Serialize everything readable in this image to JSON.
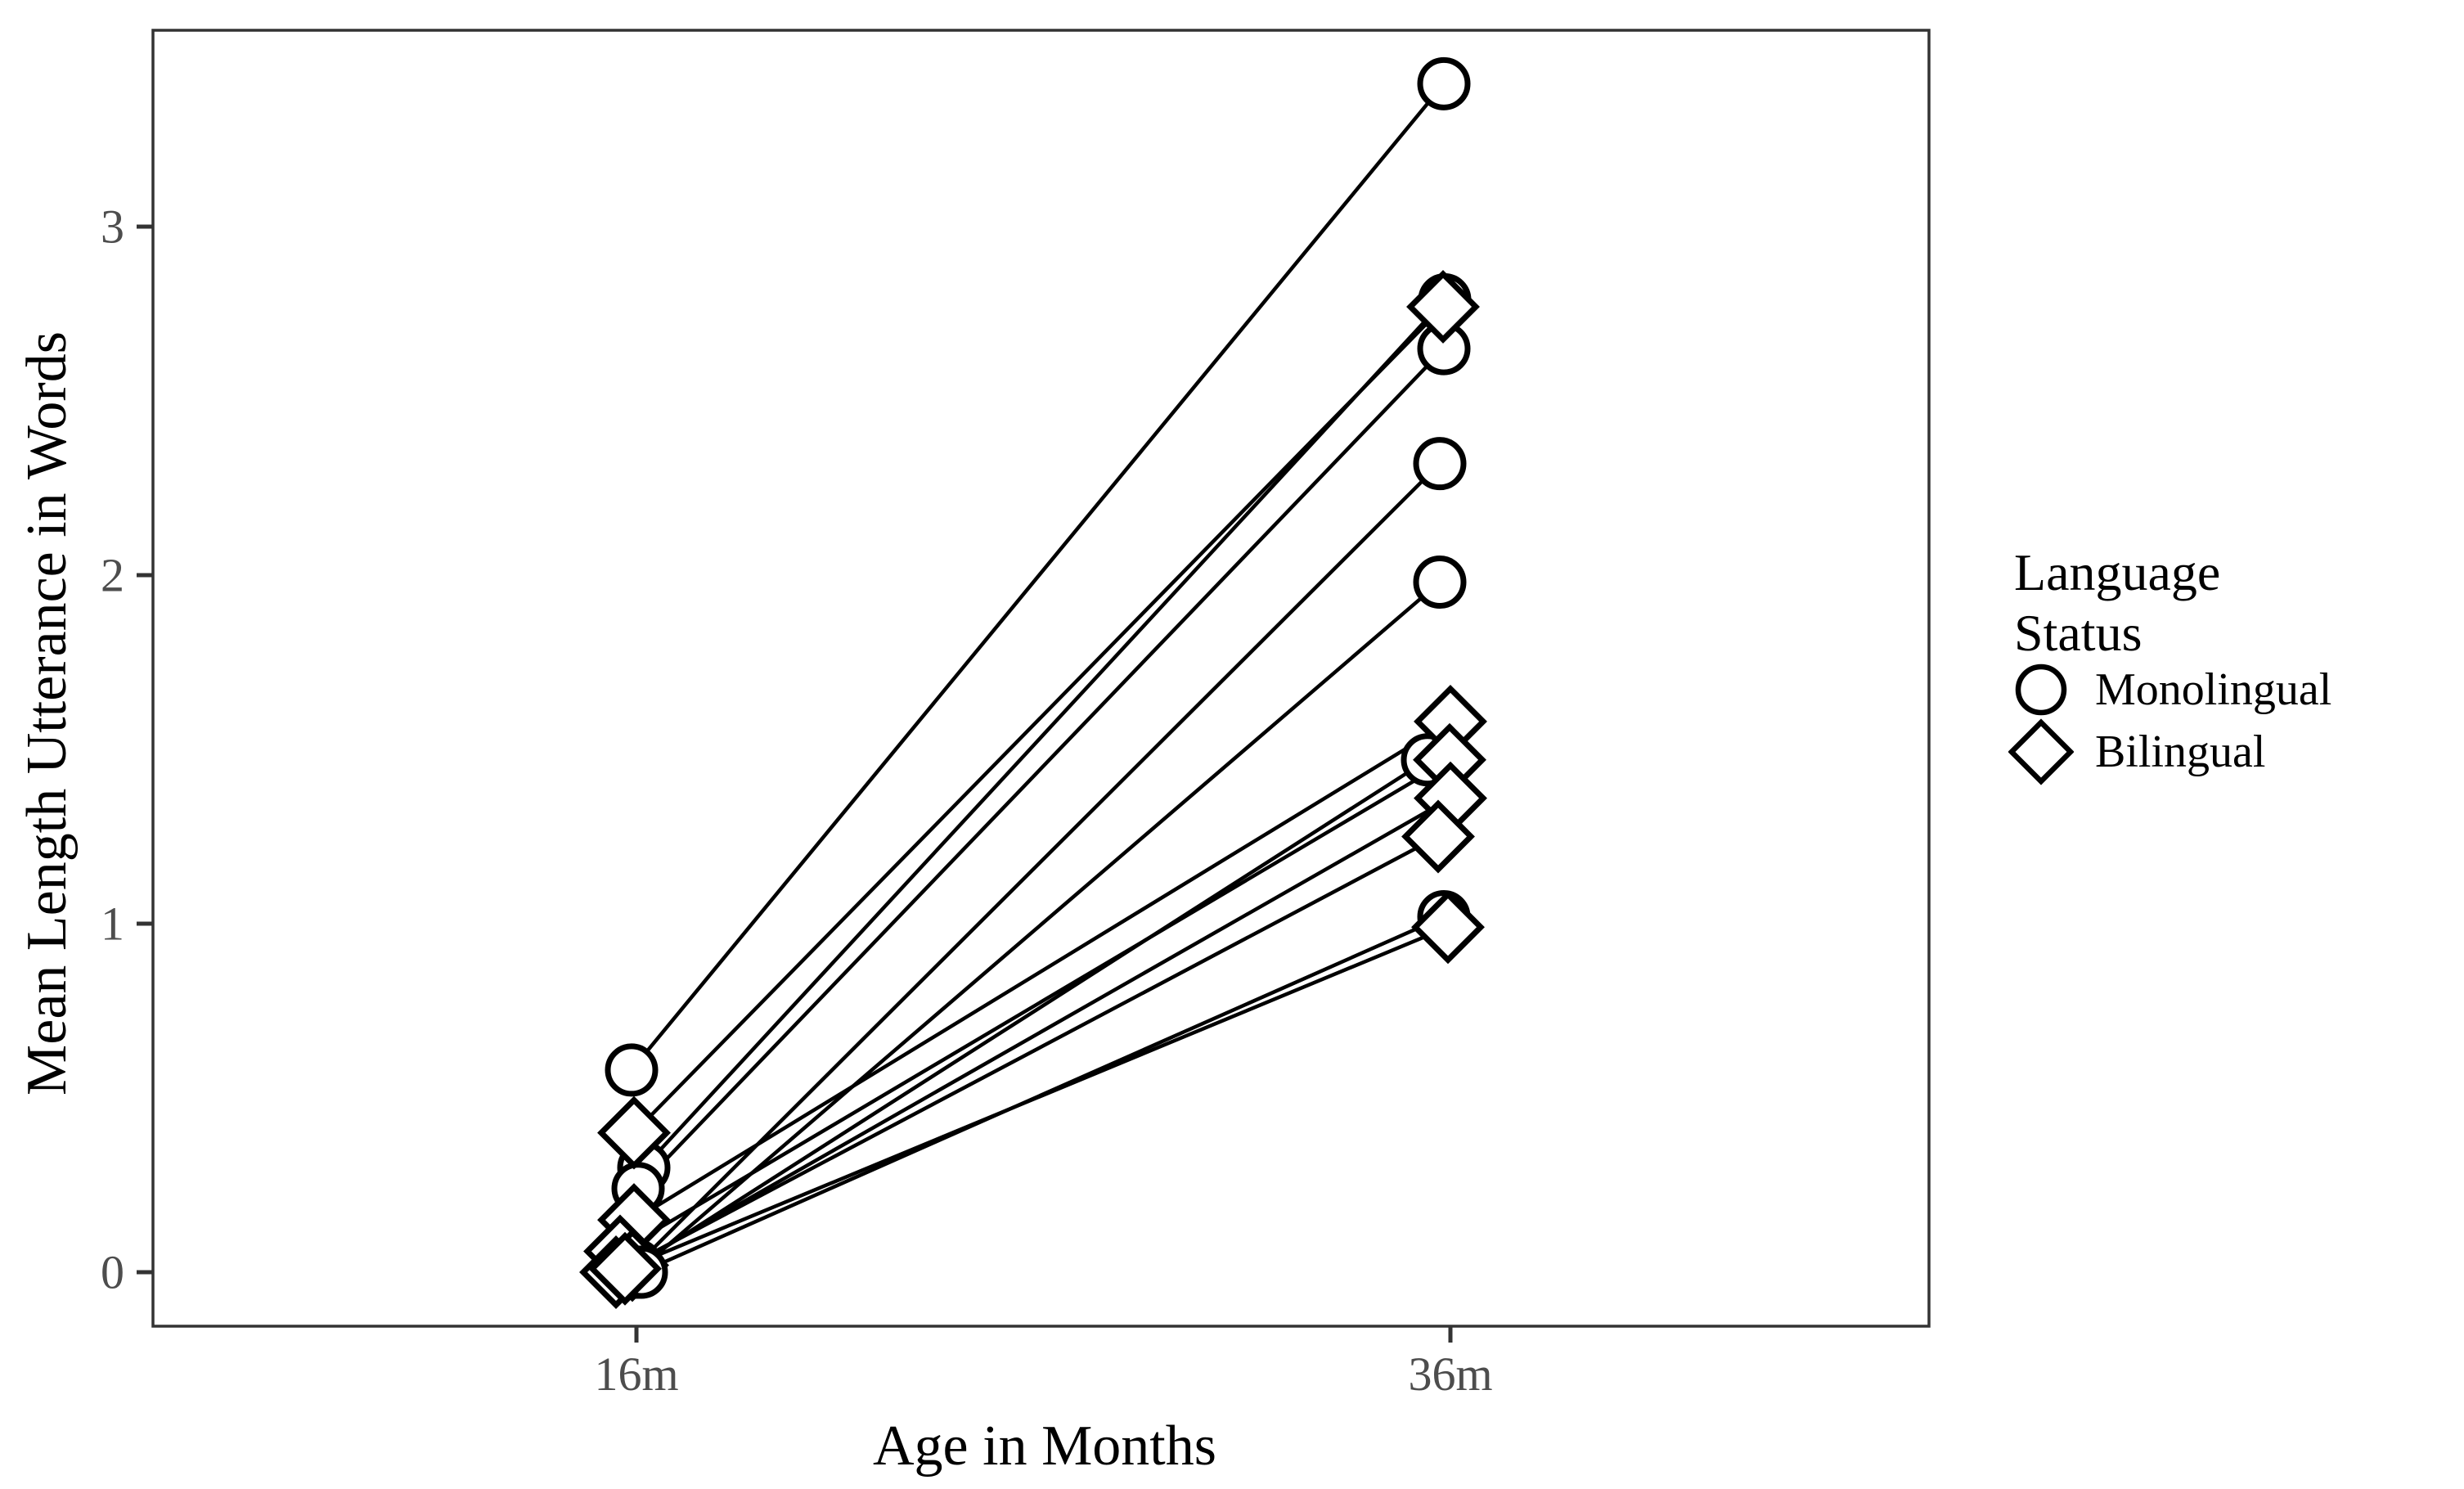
{
  "figure": {
    "x_axis_title": "Age in Months",
    "y_axis_title": "Mean Length Utterance in Words",
    "legend": {
      "title": "Language Status",
      "entries": [
        {
          "label": "Monolingual",
          "marker": "circle"
        },
        {
          "label": "Bilingual",
          "marker": "diamond"
        }
      ]
    }
  },
  "chart_data": {
    "type": "line",
    "title": "",
    "xlabel": "Age in Months",
    "ylabel": "Mean Length Utterance in Words",
    "x_categories": [
      "16m",
      "36m"
    ],
    "yticks": [
      "0",
      "1",
      "2",
      "3"
    ],
    "ylim": [
      -0.16,
      3.56
    ],
    "grid": false,
    "legend_position": "right",
    "legend_title": "Language Status",
    "series_legend": [
      {
        "name": "Monolingual",
        "marker": "circle"
      },
      {
        "name": "Bilingual",
        "marker": "diamond"
      }
    ],
    "subjects": [
      {
        "group": "Monolingual",
        "marker": "circle",
        "mlu_16m": 0.3,
        "mlu_36m": 2.79
      },
      {
        "group": "Monolingual",
        "marker": "circle",
        "mlu_16m": 0.24,
        "mlu_36m": 2.65
      },
      {
        "group": "Monolingual",
        "marker": "circle",
        "mlu_16m": 0.02,
        "mlu_36m": 2.32
      },
      {
        "group": "Monolingual",
        "marker": "circle",
        "mlu_16m": 0.01,
        "mlu_36m": 1.47
      },
      {
        "group": "Bilingual",
        "marker": "diamond",
        "mlu_16m": 0.4,
        "mlu_36m": 2.77
      },
      {
        "group": "Bilingual",
        "marker": "diamond",
        "mlu_16m": 0.15,
        "mlu_36m": 1.58
      },
      {
        "group": "Bilingual",
        "marker": "diamond",
        "mlu_16m": 0.06,
        "mlu_36m": 1.47
      },
      {
        "group": "Bilingual",
        "marker": "diamond",
        "mlu_16m": 0.02,
        "mlu_36m": 1.36
      },
      {
        "group": "Bilingual",
        "marker": "diamond",
        "mlu_16m": 0.0,
        "mlu_36m": 1.25
      },
      {
        "group": "Monolingual",
        "marker": "circle",
        "mlu_16m": 0.58,
        "mlu_36m": 3.41
      },
      {
        "group": "Monolingual",
        "marker": "circle",
        "mlu_16m": 0.0,
        "mlu_36m": 1.98
      },
      {
        "group": "Monolingual",
        "marker": "circle",
        "mlu_16m": 0.0,
        "mlu_36m": 1.02
      },
      {
        "group": "Bilingual",
        "marker": "diamond",
        "mlu_16m": 0.01,
        "mlu_36m": 0.99
      }
    ],
    "colors": {
      "line": "#000000",
      "marker_stroke": "#000000",
      "marker_fill": "#ffffff",
      "panel_border": "#333333",
      "tick_mark": "#333333",
      "tick_label": "#4d4d4d",
      "text": "#000000",
      "background": "#ffffff"
    }
  }
}
